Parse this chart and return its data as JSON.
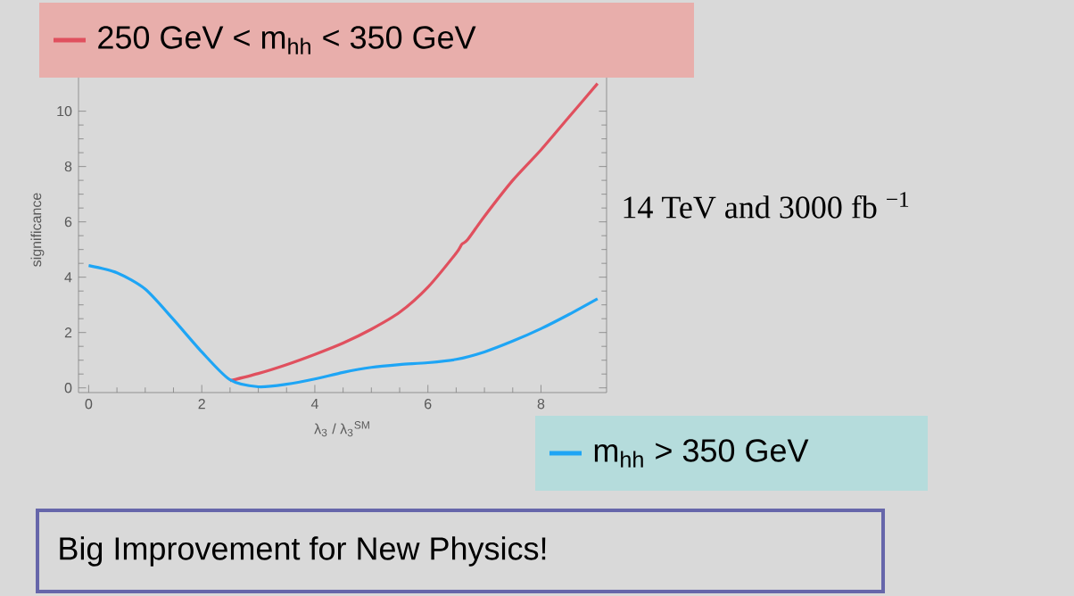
{
  "chart_data": {
    "type": "line",
    "legend": "bottom right",
    "xlabel": "λ$_{3}$ / λ$_{3}$$^{SM}$",
    "ylabel": "significance",
    "xlim": [
      -0.18,
      9.16
    ],
    "ylim": [
      -0.17,
      11.6
    ],
    "xticks": [
      0,
      2,
      4,
      6,
      8
    ],
    "yticks": [
      0,
      2,
      4,
      6,
      8,
      10
    ],
    "series": [
      {
        "name": "250 GeV < m$_{hh}$ <  350  GeV",
        "color": "#e0505e",
        "x": [
          2.5,
          3,
          3.5,
          4,
          4.5,
          5,
          5.5,
          6,
          6.5,
          6.6,
          6.7,
          7,
          7.5,
          8,
          8.5,
          9
        ],
        "values": [
          0.26,
          0.52,
          0.84,
          1.21,
          1.62,
          2.12,
          2.73,
          3.64,
          4.87,
          5.19,
          5.35,
          6.2,
          7.5,
          8.6,
          9.8,
          11.0
        ]
      },
      {
        "name": "m$_{hh}$ > 350  GeV",
        "color": "#1ea5f5",
        "x": [
          0,
          0.5,
          1,
          1.5,
          2,
          2.5,
          3,
          3.5,
          4,
          4.5,
          5,
          5.5,
          6,
          6.5,
          7,
          7.5,
          8,
          8.5,
          9
        ],
        "values": [
          4.42,
          4.16,
          3.57,
          2.47,
          1.3,
          0.29,
          0.04,
          0.13,
          0.32,
          0.56,
          0.74,
          0.84,
          0.91,
          1.03,
          1.3,
          1.69,
          2.14,
          2.66,
          3.22
        ]
      }
    ],
    "annotations": [
      "14 TeV and 3000 fb $^{−1}$",
      "Big Improvement for New Physics!"
    ]
  }
}
